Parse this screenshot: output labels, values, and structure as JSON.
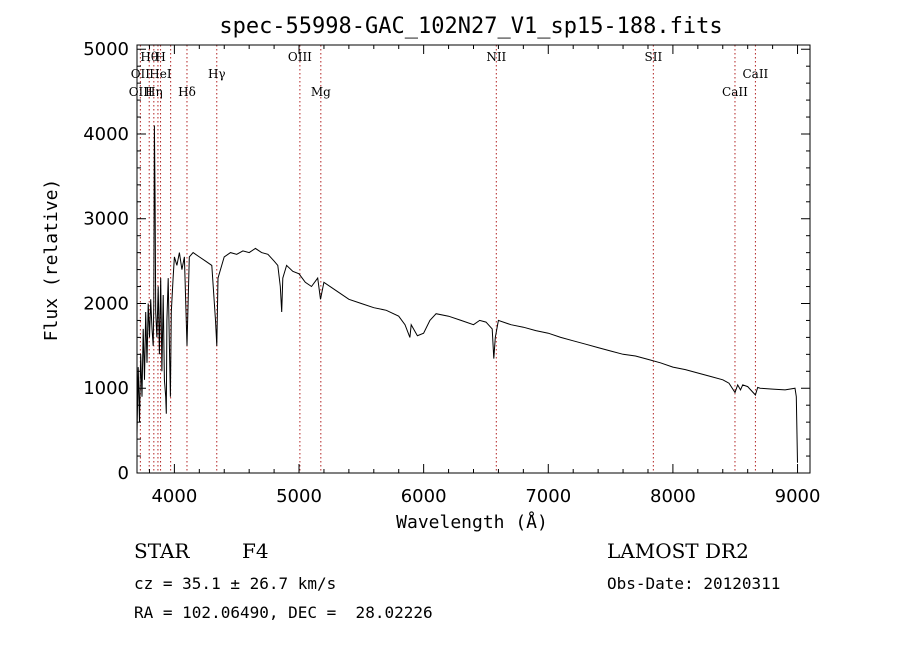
{
  "header": {
    "title": "spec-55998-GAC_102N27_V1_sp15-188.fits"
  },
  "info": {
    "class_label": "STAR",
    "subclass": "F4",
    "survey": "LAMOST DR2",
    "cz": "cz = 35.1 ± 26.7 km/s",
    "obs_date": "Obs-Date: 20120311",
    "coords": "RA = 102.06490, DEC =  28.02226"
  },
  "chart_data": {
    "type": "line",
    "title": "spec-55998-GAC_102N27_V1_sp15-188.fits",
    "xlabel": "Wavelength (Å)",
    "ylabel": "Flux (relative)",
    "xlim": [
      3700,
      9100
    ],
    "ylim": [
      0,
      5050
    ],
    "xticks": [
      4000,
      5000,
      6000,
      7000,
      8000,
      9000
    ],
    "yticks": [
      0,
      1000,
      2000,
      3000,
      4000,
      5000
    ],
    "grid": false,
    "series": [
      {
        "x": [
          3700,
          3710,
          3720,
          3730,
          3740,
          3750,
          3760,
          3770,
          3780,
          3790,
          3800,
          3810,
          3820,
          3830,
          3835,
          3840,
          3845,
          3850,
          3860,
          3870,
          3880,
          3890,
          3900,
          3910,
          3920,
          3930,
          3935,
          3940,
          3950,
          3960,
          3968,
          3975,
          3990,
          4000,
          4020,
          4040,
          4060,
          4080,
          4101,
          4120,
          4150,
          4200,
          4250,
          4300,
          4330,
          4340,
          4350,
          4400,
          4450,
          4500,
          4550,
          4600,
          4650,
          4700,
          4750,
          4800,
          4830,
          4850,
          4861,
          4870,
          4900,
          4950,
          5000,
          5050,
          5100,
          5150,
          5172,
          5200,
          5300,
          5400,
          5500,
          5600,
          5700,
          5800,
          5850,
          5890,
          5900,
          5950,
          6000,
          6050,
          6100,
          6200,
          6300,
          6400,
          6450,
          6500,
          6550,
          6563,
          6575,
          6600,
          6700,
          6800,
          6900,
          7000,
          7100,
          7200,
          7300,
          7400,
          7500,
          7600,
          7700,
          7800,
          7900,
          8000,
          8100,
          8200,
          8300,
          8400,
          8450,
          8498,
          8520,
          8542,
          8560,
          8600,
          8662,
          8680,
          8700,
          8800,
          8900,
          8980,
          8990,
          9000
        ],
        "y": [
          450,
          1250,
          600,
          1400,
          900,
          1700,
          1100,
          1900,
          1300,
          2000,
          1600,
          2050,
          1700,
          1500,
          2000,
          4100,
          3200,
          1900,
          1600,
          2200,
          1400,
          2300,
          1200,
          2100,
          1100,
          900,
          700,
          1800,
          2300,
          1500,
          900,
          1900,
          2300,
          2550,
          2450,
          2600,
          2400,
          2550,
          1500,
          2550,
          2600,
          2550,
          2500,
          2450,
          1800,
          1500,
          2300,
          2550,
          2600,
          2580,
          2620,
          2600,
          2650,
          2600,
          2580,
          2500,
          2450,
          2200,
          1900,
          2300,
          2450,
          2380,
          2350,
          2250,
          2200,
          2300,
          2050,
          2250,
          2150,
          2050,
          2000,
          1950,
          1920,
          1850,
          1750,
          1600,
          1750,
          1620,
          1650,
          1800,
          1880,
          1850,
          1800,
          1750,
          1800,
          1780,
          1700,
          1350,
          1600,
          1800,
          1750,
          1720,
          1680,
          1650,
          1600,
          1560,
          1520,
          1480,
          1440,
          1400,
          1380,
          1340,
          1300,
          1250,
          1220,
          1180,
          1140,
          1100,
          1060,
          950,
          1040,
          980,
          1040,
          1020,
          920,
          1010,
          1000,
          990,
          980,
          1000,
          900,
          120
        ]
      }
    ],
    "annotations": [
      {
        "label": "Hθ",
        "x": 3798,
        "row": 0
      },
      {
        "label": "H",
        "x": 3889,
        "row": 0
      },
      {
        "label": "OIII",
        "x": 5007,
        "row": 0
      },
      {
        "label": "NII",
        "x": 6583,
        "row": 0
      },
      {
        "label": "SII",
        "x": 7843,
        "row": 0
      },
      {
        "label": "OII",
        "x": 3727,
        "row": 1
      },
      {
        "label": "HeI",
        "x": 3888,
        "row": 1
      },
      {
        "label": "Hγ",
        "x": 4340,
        "row": 1
      },
      {
        "label": "CaII",
        "x": 8662,
        "row": 1
      },
      {
        "label": "OIII",
        "x": 3730,
        "row": 2
      },
      {
        "label": "Hη",
        "x": 3835,
        "row": 2
      },
      {
        "label": "Hδ",
        "x": 4101,
        "row": 2
      },
      {
        "label": "Mg",
        "x": 5175,
        "row": 2
      },
      {
        "label": "CaII",
        "x": 8498,
        "row": 2
      }
    ],
    "marker_lines": [
      3727,
      3798,
      3835,
      3868,
      3889,
      3970,
      4101,
      4340,
      5007,
      5175,
      6583,
      7843,
      8498,
      8662
    ],
    "marker_color": "#b22222",
    "line_color": "#000000"
  }
}
